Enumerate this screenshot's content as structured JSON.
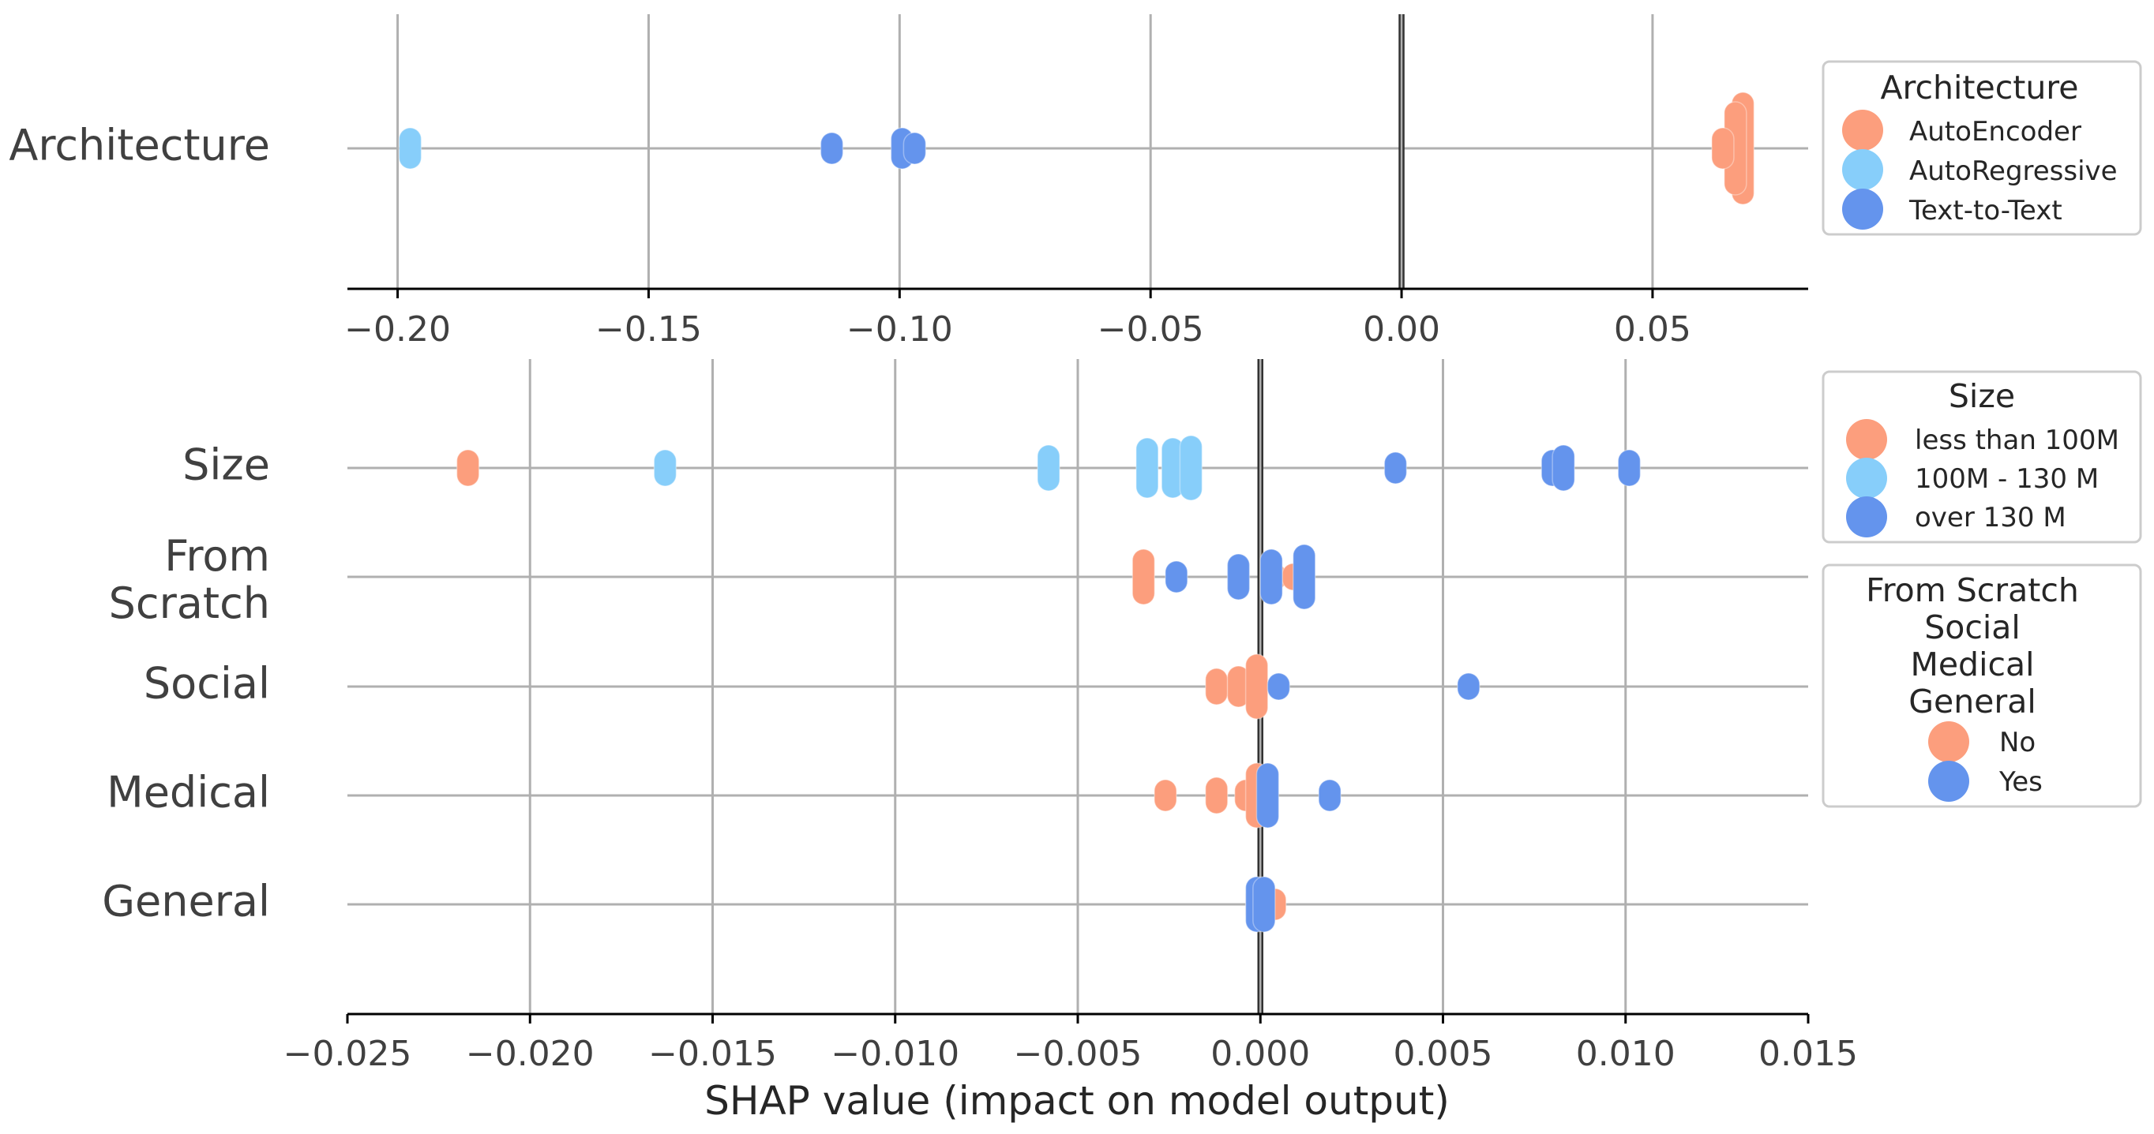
{
  "chart_data": [
    {
      "type": "scatter",
      "subtype": "shap-beeswarm",
      "title": "",
      "xlabel": "",
      "xlim": [
        -0.21,
        0.081
      ],
      "xticks": [
        -0.2,
        -0.15,
        -0.1,
        -0.05,
        0.0,
        0.05
      ],
      "xtick_labels": [
        "−0.20",
        "−0.15",
        "−0.10",
        "−0.05",
        "0.00",
        "0.05"
      ],
      "categories": [
        "Architecture"
      ],
      "legend": {
        "title": "Architecture",
        "position": "right",
        "items": [
          {
            "label": "AutoEncoder",
            "color": "#fc9e7d"
          },
          {
            "label": "AutoRegressive",
            "color": "#87cefa"
          },
          {
            "label": "Text-to-Text",
            "color": "#6494ed"
          }
        ]
      },
      "series": [
        {
          "name": "AutoEncoder",
          "color": "#fc9e7d",
          "points": [
            {
              "category": "Architecture",
              "x": 0.068,
              "spread": 20
            },
            {
              "category": "Architecture",
              "x": 0.0665,
              "spread": 16
            },
            {
              "category": "Architecture",
              "x": 0.064,
              "spread": 5
            }
          ]
        },
        {
          "name": "AutoRegressive",
          "color": "#87cefa",
          "points": [
            {
              "category": "Architecture",
              "x": -0.1975,
              "spread": 5
            }
          ]
        },
        {
          "name": "Text-to-Text",
          "color": "#6494ed",
          "points": [
            {
              "category": "Architecture",
              "x": -0.1135,
              "spread": 3
            },
            {
              "category": "Architecture",
              "x": -0.0995,
              "spread": 5
            },
            {
              "category": "Architecture",
              "x": -0.097,
              "spread": 3
            }
          ]
        }
      ]
    },
    {
      "type": "scatter",
      "subtype": "shap-beeswarm",
      "title": "",
      "xlabel": "SHAP value (impact on model output)",
      "xlim": [
        -0.025,
        0.015
      ],
      "xticks": [
        -0.025,
        -0.02,
        -0.015,
        -0.01,
        -0.005,
        0.0,
        0.005,
        0.01,
        0.015
      ],
      "xtick_labels": [
        "−0.025",
        "−0.020",
        "−0.015",
        "−0.010",
        "−0.005",
        "0.000",
        "0.005",
        "0.010",
        "0.015"
      ],
      "categories": [
        "Size",
        "From Scratch",
        "Social",
        "Medical",
        "General"
      ],
      "legends": [
        {
          "title": "Size",
          "position": "right",
          "items": [
            {
              "label": "less than 100M",
              "color": "#fc9e7d"
            },
            {
              "label": "100M - 130 M",
              "color": "#87cefa"
            },
            {
              "label": "over 130 M",
              "color": "#6494ed"
            }
          ]
        },
        {
          "title_lines": [
            "From Scratch",
            "Social",
            "Medical",
            "General"
          ],
          "position": "right",
          "items": [
            {
              "label": "No",
              "color": "#fc9e7d"
            },
            {
              "label": "Yes",
              "color": "#6494ed"
            }
          ]
        }
      ],
      "series": [
        {
          "name": "less than 100M / No",
          "color": "#fc9e7d",
          "points": [
            {
              "category": "Size",
              "x": -0.0217,
              "spread": 4
            },
            {
              "category": "From Scratch",
              "x": -0.0032,
              "spread": 8
            },
            {
              "category": "From Scratch",
              "x": 0.0004,
              "spread": 2
            },
            {
              "category": "From Scratch",
              "x": 0.0009,
              "spread": 2
            },
            {
              "category": "Social",
              "x": -0.0012,
              "spread": 4
            },
            {
              "category": "Social",
              "x": -0.0006,
              "spread": 5
            },
            {
              "category": "Social",
              "x": -0.0001,
              "spread": 10
            },
            {
              "category": "Medical",
              "x": -0.0026,
              "spread": 3
            },
            {
              "category": "Medical",
              "x": -0.0012,
              "spread": 4
            },
            {
              "category": "Medical",
              "x": -0.0004,
              "spread": 3
            },
            {
              "category": "Medical",
              "x": -0.0001,
              "spread": 10
            },
            {
              "category": "General",
              "x": -0.0001,
              "spread": 5
            },
            {
              "category": "General",
              "x": 0.0004,
              "spread": 3
            }
          ]
        },
        {
          "name": "100M - 130 M",
          "color": "#87cefa",
          "points": [
            {
              "category": "Size",
              "x": -0.0163,
              "spread": 4
            },
            {
              "category": "Size",
              "x": -0.0058,
              "spread": 6
            },
            {
              "category": "Size",
              "x": -0.0031,
              "spread": 9
            },
            {
              "category": "Size",
              "x": -0.0024,
              "spread": 9
            },
            {
              "category": "Size",
              "x": -0.0019,
              "spread": 10
            }
          ]
        },
        {
          "name": "over 130 M / Yes",
          "color": "#6494ed",
          "points": [
            {
              "category": "Size",
              "x": 0.0037,
              "spread": 3
            },
            {
              "category": "Size",
              "x": 0.008,
              "spread": 4
            },
            {
              "category": "Size",
              "x": 0.0083,
              "spread": 6
            },
            {
              "category": "Size",
              "x": 0.0101,
              "spread": 4
            },
            {
              "category": "From Scratch",
              "x": -0.0023,
              "spread": 3
            },
            {
              "category": "From Scratch",
              "x": -0.0006,
              "spread": 6
            },
            {
              "category": "From Scratch",
              "x": 0.0003,
              "spread": 8
            },
            {
              "category": "From Scratch",
              "x": 0.0012,
              "spread": 10
            },
            {
              "category": "Social",
              "x": 0.0005,
              "spread": 2
            },
            {
              "category": "Social",
              "x": 0.0057,
              "spread": 2
            },
            {
              "category": "Medical",
              "x": 0.0002,
              "spread": 10
            },
            {
              "category": "Medical",
              "x": 0.0019,
              "spread": 3
            },
            {
              "category": "General",
              "x": -0.0001,
              "spread": 8
            },
            {
              "category": "General",
              "x": 0.0001,
              "spread": 8
            }
          ]
        }
      ]
    }
  ]
}
